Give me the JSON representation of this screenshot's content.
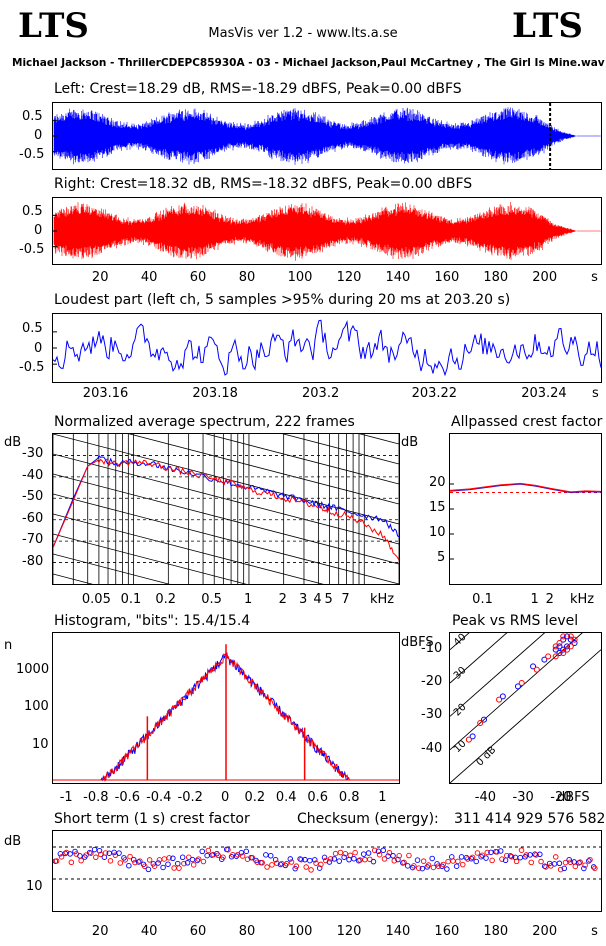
{
  "header": {
    "logo_left": "LTS",
    "logo_right": "LTS",
    "version": "MasVis ver 1.2 - www.lts.a.se",
    "filename": "Michael Jackson - ThrillerCDEPC85930A - 03 - Michael Jackson,Paul McCartney , The Girl Is Mine.wav"
  },
  "colors": {
    "left": "#0000ff",
    "right": "#ff0000",
    "ref": "#ff0000"
  },
  "chart_data": [
    {
      "id": "left-waveform",
      "type": "line",
      "title": "Left: Crest=18.29 dB, RMS=-18.29 dBFS, Peak=0.00 dBFS",
      "crest_db": 18.29,
      "rms_dbfs": -18.29,
      "peak_dbfs": 0.0,
      "xlim": [
        0,
        224
      ],
      "ylim": [
        -1,
        1
      ],
      "yticks": [
        "0.5",
        "0",
        "-0.5"
      ],
      "loudest_marker_s": 203.2
    },
    {
      "id": "right-waveform",
      "type": "line",
      "title": "Right: Crest=18.32 dB, RMS=-18.32 dBFS, Peak=0.00 dBFS",
      "crest_db": 18.32,
      "rms_dbfs": -18.32,
      "peak_dbfs": 0.0,
      "xlim": [
        0,
        224
      ],
      "ylim": [
        -1,
        1
      ],
      "yticks": [
        "0.5",
        "0",
        "-0.5"
      ],
      "xticks": [
        "20",
        "40",
        "60",
        "80",
        "100",
        "120",
        "140",
        "160",
        "180",
        "200",
        "s"
      ]
    },
    {
      "id": "loudest-part",
      "type": "line",
      "title": "Loudest part (left  ch, 5 samples >95% during 20 ms at 203.20 s)",
      "xlim": [
        203.15,
        203.25
      ],
      "ylim": [
        -1,
        1
      ],
      "yticks": [
        "0.5",
        "0",
        "-0.5"
      ],
      "xticks": [
        "203.16",
        "203.18",
        "203.2",
        "203.22",
        "203.24",
        "s"
      ]
    },
    {
      "id": "spectrum",
      "type": "line",
      "title": "Normalized average spectrum, 222 frames",
      "ylabel": "dB",
      "ylim": [
        -90,
        -20
      ],
      "yticks": [
        "-30",
        "-40",
        "-50",
        "-60",
        "-70",
        "-80"
      ],
      "xticks": [
        "0.05",
        "0.1",
        "0.2",
        "0.5",
        "1",
        "2",
        "3",
        "4",
        "5",
        "7",
        "kHz"
      ],
      "x_khz": [
        0.02,
        0.03,
        0.04,
        0.05,
        0.07,
        0.1,
        0.15,
        0.2,
        0.3,
        0.5,
        0.7,
        1,
        1.5,
        2,
        3,
        4,
        5,
        7,
        10,
        15,
        20
      ],
      "series": [
        {
          "name": "",
          "values": [
            -73,
            -50,
            -35,
            -31,
            -34,
            -33,
            -34,
            -36,
            -38,
            -41,
            -43,
            -45,
            -47,
            -49,
            -51,
            -53,
            -54,
            -56,
            -58,
            -60,
            -68
          ]
        },
        {
          "name": "",
          "values": [
            -73,
            -51,
            -35,
            -32,
            -34,
            -33,
            -34,
            -36,
            -38,
            -41,
            -43,
            -46,
            -48,
            -50,
            -52,
            -54,
            -56,
            -58,
            -62,
            -68,
            -79
          ]
        }
      ]
    },
    {
      "id": "allpassed-crest",
      "type": "line",
      "title": "Allpassed crest factor",
      "ylabel": "dB",
      "ylim": [
        0,
        30
      ],
      "yticks": [
        "20",
        "15",
        "10",
        "5"
      ],
      "xticks": [
        "0.1",
        "1",
        "2",
        "kHz"
      ],
      "x_khz": [
        0.02,
        0.05,
        0.1,
        0.2,
        0.5,
        1,
        2,
        5,
        10,
        20
      ],
      "series": [
        {
          "name": "",
          "values": [
            18.6,
            18.9,
            19.3,
            19.7,
            20.0,
            19.6,
            19.0,
            18.3,
            18.5,
            18.4
          ]
        },
        {
          "name": "",
          "values": [
            18.7,
            19.0,
            19.4,
            19.8,
            20.1,
            19.7,
            19.1,
            18.4,
            18.6,
            18.5
          ]
        }
      ],
      "reference_db": 18.3
    },
    {
      "id": "histogram",
      "type": "line",
      "title": "Histogram, \"bits\": 15.4/15.4",
      "ylabel": "n",
      "yscale": "log",
      "yticks": [
        "1000",
        "100",
        "10"
      ],
      "xticks": [
        "-1",
        "-0.8",
        "-0.6",
        "-0.4",
        "-0.2",
        "0",
        "0.2",
        "0.4",
        "0.6",
        "0.8",
        "1"
      ],
      "xlim": [
        -1.1,
        1.1
      ],
      "peak_count": 2500
    },
    {
      "id": "peak-vs-rms",
      "type": "scatter",
      "title": "Peak vs RMS level",
      "ylabel": "dBFS",
      "xlabel": "dBFS",
      "xlim": [
        -50,
        -10
      ],
      "ylim": [
        -50,
        -5
      ],
      "yticks": [
        "-10",
        "-20",
        "-30",
        "-40"
      ],
      "xticks": [
        "-40",
        "-30",
        "-20"
      ],
      "crest_lines": [
        "40",
        "30",
        "20",
        "10",
        "0 dB"
      ],
      "points_left": [
        [
          -44,
          -36
        ],
        [
          -41,
          -31
        ],
        [
          -36,
          -24
        ],
        [
          -32,
          -21
        ],
        [
          -28,
          -15
        ],
        [
          -25,
          -13
        ],
        [
          -22,
          -10
        ],
        [
          -21,
          -9
        ],
        [
          -20,
          -7
        ],
        [
          -19,
          -6
        ],
        [
          -18,
          -7
        ],
        [
          -17,
          -8
        ],
        [
          -19,
          -9
        ],
        [
          -20,
          -10
        ],
        [
          -21,
          -11
        ]
      ],
      "points_right": [
        [
          -45,
          -37
        ],
        [
          -42,
          -32
        ],
        [
          -37,
          -25
        ],
        [
          -31,
          -20
        ],
        [
          -27,
          -16
        ],
        [
          -24,
          -12
        ],
        [
          -22,
          -9
        ],
        [
          -21,
          -8
        ],
        [
          -20,
          -6
        ],
        [
          -18,
          -6
        ],
        [
          -17,
          -7
        ],
        [
          -18,
          -9
        ],
        [
          -19,
          -10
        ],
        [
          -20,
          -11
        ],
        [
          -22,
          -12
        ]
      ]
    },
    {
      "id": "short-term-crest",
      "type": "scatter",
      "title": "Short term (1 s) crest factor",
      "checksum_label": "Checksum (energy):",
      "checksum": "311 414 929 576 582",
      "ylabel": "dB",
      "ylim": [
        0,
        25
      ],
      "yticks": [
        "10"
      ],
      "xticks": [
        "20",
        "40",
        "60",
        "80",
        "100",
        "120",
        "140",
        "160",
        "180",
        "200",
        "s"
      ],
      "xlim": [
        0,
        224
      ],
      "ref_lines_db": [
        10,
        20
      ]
    }
  ]
}
